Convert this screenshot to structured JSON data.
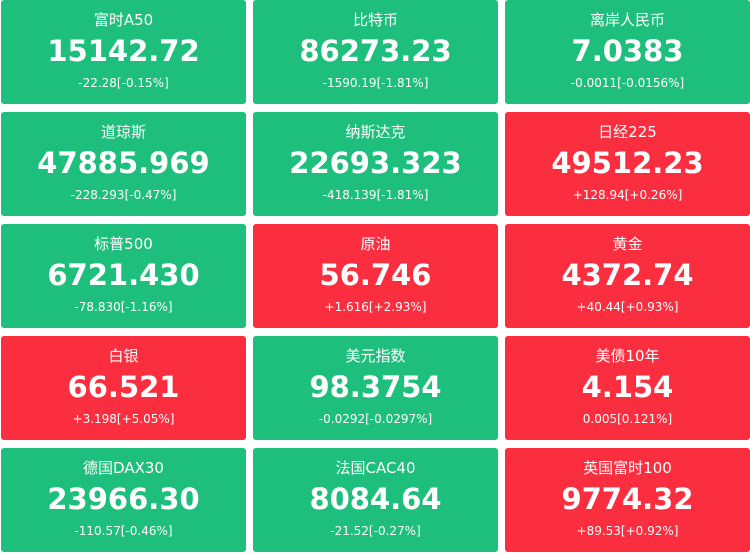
{
  "tiles": [
    {
      "name": "富时A50",
      "price": "15142.72",
      "change": "-22.28[-0.15%]",
      "color": "#1ebf7c"
    },
    {
      "name": "比特币",
      "price": "86273.23",
      "change": "-1590.19[-1.81%]",
      "color": "#1ebf7c"
    },
    {
      "name": "离岸人民币",
      "price": "7.0383",
      "change": "-0.0011[-0.0156%]",
      "color": "#1ebf7c"
    },
    {
      "name": "道琼斯",
      "price": "47885.969",
      "change": "-228.293[-0.47%]",
      "color": "#1ebf7c"
    },
    {
      "name": "纳斯达克",
      "price": "22693.323",
      "change": "-418.139[-1.81%]",
      "color": "#1ebf7c"
    },
    {
      "name": "日经225",
      "price": "49512.23",
      "change": "+128.94[+0.26%]",
      "color": "#fb2e3f"
    },
    {
      "name": "标普500",
      "price": "6721.430",
      "change": "-78.830[-1.16%]",
      "color": "#1ebf7c"
    },
    {
      "name": "原油",
      "price": "56.746",
      "change": "+1.616[+2.93%]",
      "color": "#fb2e3f"
    },
    {
      "name": "黄金",
      "price": "4372.74",
      "change": "+40.44[+0.93%]",
      "color": "#fb2e3f"
    },
    {
      "name": "白银",
      "price": "66.521",
      "change": "+3.198[+5.05%]",
      "color": "#fb2e3f"
    },
    {
      "name": "美元指数",
      "price": "98.3754",
      "change": "-0.0292[-0.0297%]",
      "color": "#1ebf7c"
    },
    {
      "name": "美债10年",
      "price": "4.154",
      "change": "0.005[0.121%]",
      "color": "#fb2e3f"
    },
    {
      "name": "德国DAX30",
      "price": "23966.30",
      "change": "-110.57[-0.46%]",
      "color": "#1ebf7c"
    },
    {
      "name": "法国CAC40",
      "price": "8084.64",
      "change": "-21.52[-0.27%]",
      "color": "#1ebf7c"
    },
    {
      "name": "英国富时100",
      "price": "9774.32",
      "change": "+89.53[+0.92%]",
      "color": "#fb2e3f"
    }
  ]
}
